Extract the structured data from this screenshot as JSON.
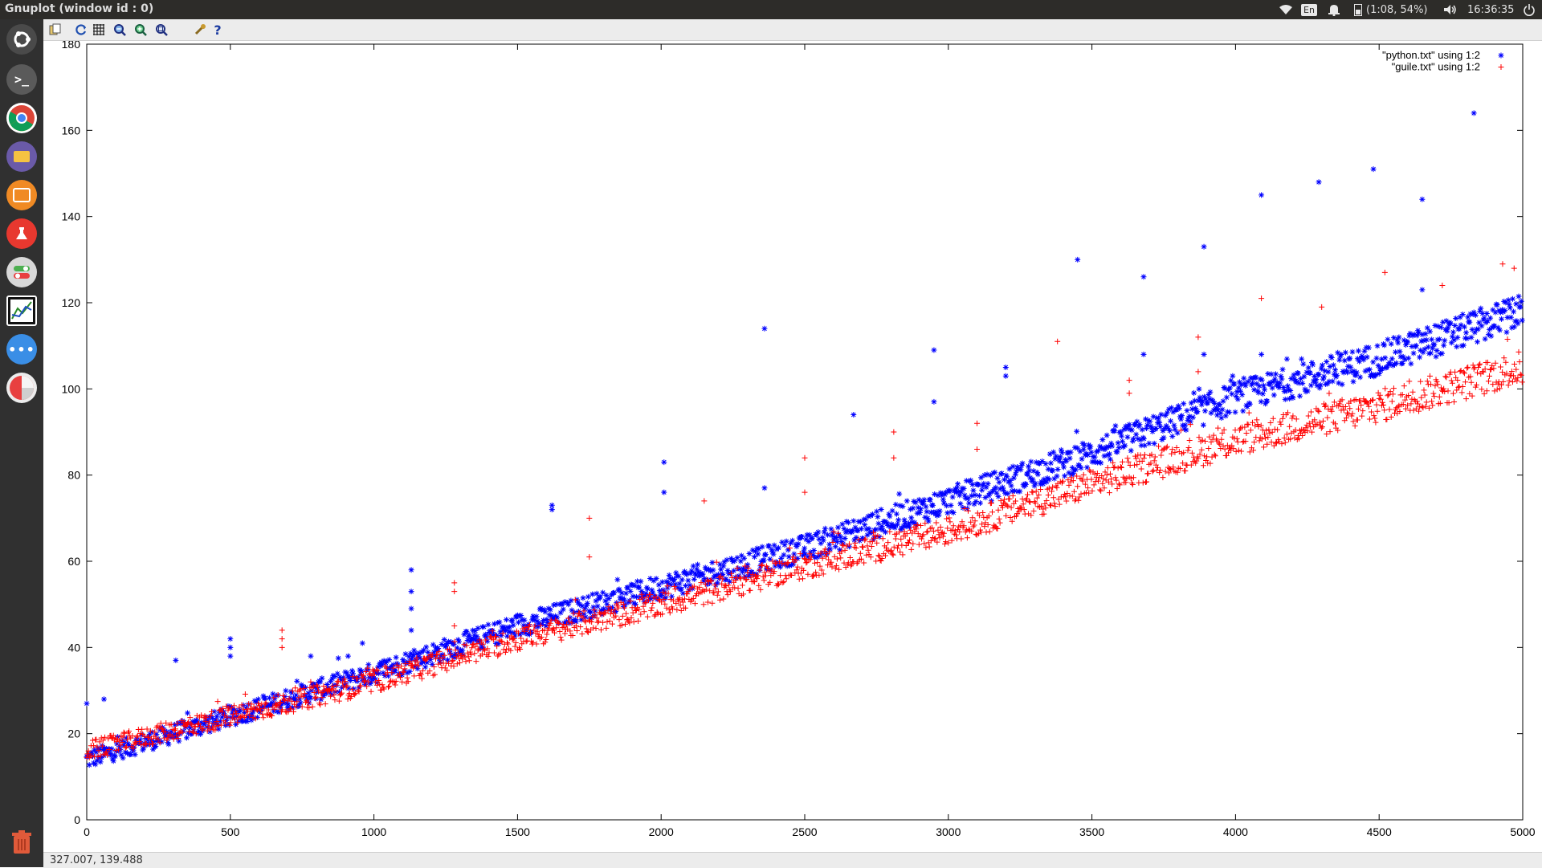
{
  "window": {
    "title": "Gnuplot (window id : 0)"
  },
  "tray": {
    "keyboard": "En",
    "battery": "(1:08, 54%)",
    "clock": "16:36:35"
  },
  "launcher": {
    "items": [
      "ubuntu-dash-icon",
      "terminal-icon",
      "chrome-icon",
      "files-icon",
      "software-center-icon",
      "lab-icon",
      "settings-toggle-icon",
      "gnuplot-icon",
      "messaging-icon",
      "disk-usage-icon"
    ],
    "trash": "trash-icon"
  },
  "toolbar": {
    "icons": [
      "copy-clipboard-icon",
      "replot-icon",
      "grid-icon",
      "zoom-previous-icon",
      "zoom-next-icon",
      "autoscale-icon",
      "settings-icon",
      "help-icon"
    ]
  },
  "status": {
    "coords": "327.007, 139.488"
  },
  "chart_data": {
    "type": "scatter",
    "xlim": [
      0,
      5000
    ],
    "ylim": [
      0,
      180
    ],
    "xticks": [
      "0",
      "500",
      "1000",
      "1500",
      "2000",
      "2500",
      "3000",
      "3500",
      "4000",
      "4500",
      "5000"
    ],
    "yticks": [
      "0",
      "20",
      "40",
      "60",
      "80",
      "100",
      "120",
      "140",
      "160",
      "180"
    ],
    "grid": false,
    "legend_position": "top-right",
    "series": [
      {
        "name": "\"python.txt\" using 1:2",
        "color": "#0000ff",
        "marker": "asterisk",
        "trend": [
          [
            0,
            14
          ],
          [
            500,
            24
          ],
          [
            1000,
            34
          ],
          [
            1500,
            45
          ],
          [
            2000,
            54
          ],
          [
            2500,
            63
          ],
          [
            3000,
            74
          ],
          [
            3500,
            85
          ],
          [
            4000,
            98
          ],
          [
            4500,
            107
          ],
          [
            5000,
            118
          ]
        ],
        "outliers": [
          [
            0,
            27
          ],
          [
            60,
            28
          ],
          [
            310,
            37
          ],
          [
            500,
            42
          ],
          [
            500,
            40
          ],
          [
            500,
            38
          ],
          [
            780,
            38
          ],
          [
            910,
            38
          ],
          [
            960,
            41
          ],
          [
            1130,
            58
          ],
          [
            1130,
            53
          ],
          [
            1130,
            49
          ],
          [
            1130,
            44
          ],
          [
            1620,
            73
          ],
          [
            1620,
            72
          ],
          [
            2010,
            83
          ],
          [
            2010,
            76
          ],
          [
            2360,
            114
          ],
          [
            2360,
            77
          ],
          [
            2670,
            94
          ],
          [
            2950,
            109
          ],
          [
            2950,
            97
          ],
          [
            3200,
            105
          ],
          [
            3200,
            103
          ],
          [
            3450,
            130
          ],
          [
            3680,
            126
          ],
          [
            3680,
            108
          ],
          [
            3890,
            133
          ],
          [
            3890,
            108
          ],
          [
            4090,
            145
          ],
          [
            4090,
            108
          ],
          [
            4290,
            148
          ],
          [
            4480,
            151
          ],
          [
            4650,
            144
          ],
          [
            4650,
            123
          ],
          [
            4830,
            164
          ]
        ]
      },
      {
        "name": "\"guile.txt\" using 1:2",
        "color": "#ff0000",
        "marker": "plus",
        "trend": [
          [
            0,
            16
          ],
          [
            500,
            24
          ],
          [
            1000,
            32
          ],
          [
            1500,
            42
          ],
          [
            2000,
            50
          ],
          [
            2500,
            59
          ],
          [
            3000,
            67
          ],
          [
            3500,
            78
          ],
          [
            4000,
            88
          ],
          [
            4500,
            96
          ],
          [
            5000,
            105
          ]
        ],
        "outliers": [
          [
            680,
            44
          ],
          [
            680,
            42
          ],
          [
            680,
            40
          ],
          [
            1280,
            55
          ],
          [
            1280,
            53
          ],
          [
            1280,
            45
          ],
          [
            1750,
            70
          ],
          [
            1750,
            61
          ],
          [
            2150,
            74
          ],
          [
            2500,
            84
          ],
          [
            2500,
            76
          ],
          [
            2810,
            90
          ],
          [
            2810,
            84
          ],
          [
            3100,
            92
          ],
          [
            3100,
            86
          ],
          [
            3380,
            111
          ],
          [
            3630,
            102
          ],
          [
            3630,
            99
          ],
          [
            3870,
            112
          ],
          [
            3870,
            104
          ],
          [
            4090,
            121
          ],
          [
            4300,
            119
          ],
          [
            4520,
            127
          ],
          [
            4720,
            124
          ],
          [
            4930,
            129
          ],
          [
            4970,
            128
          ]
        ]
      }
    ]
  }
}
